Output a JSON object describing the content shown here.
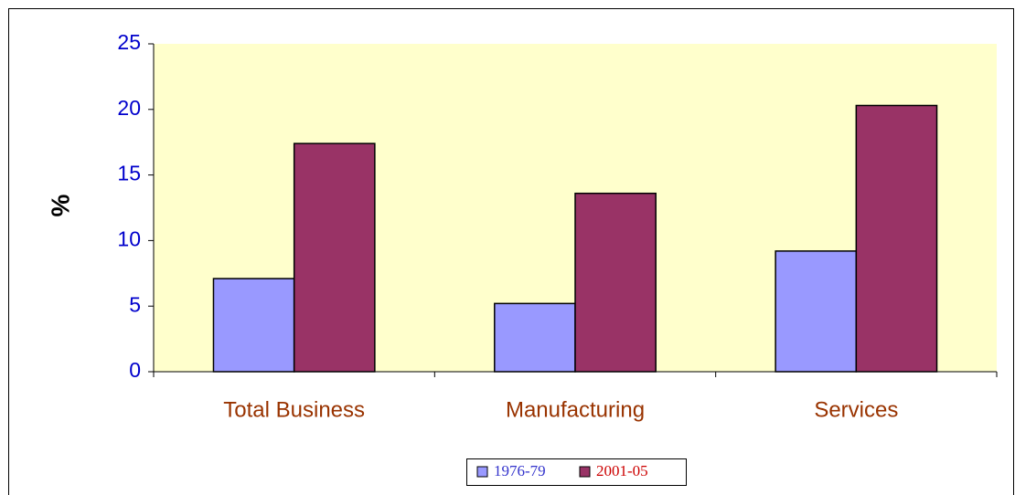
{
  "chart_data": {
    "type": "bar",
    "y_label": "%",
    "categories": [
      "Total Business",
      "Manufacturing",
      "Services"
    ],
    "series": [
      {
        "name": "1976-79",
        "color": "#9999ff",
        "values": [
          7.1,
          5.2,
          9.2
        ]
      },
      {
        "name": "2001-05",
        "color": "#993366",
        "values": [
          17.4,
          13.6,
          20.3
        ]
      }
    ],
    "ylim": [
      0,
      25
    ],
    "yticks": [
      0,
      5,
      10,
      15,
      20,
      25
    ],
    "plot_background": "#ffffcc"
  }
}
